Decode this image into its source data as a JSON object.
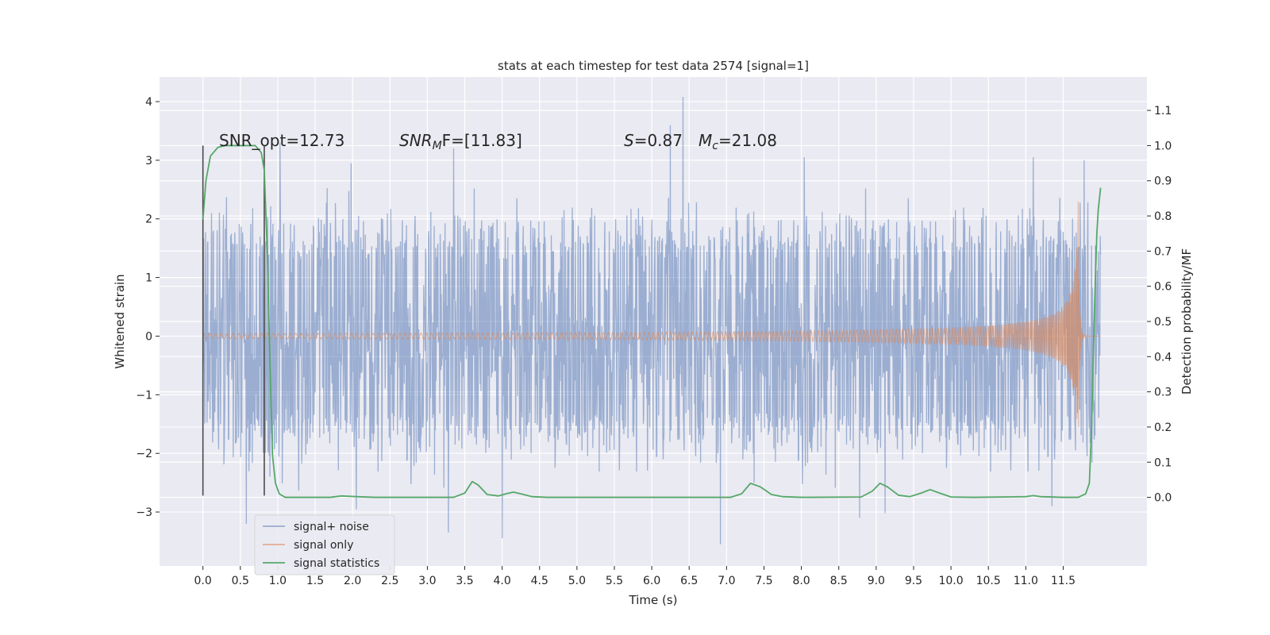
{
  "chart_data": {
    "type": "line",
    "title": "stats at each timestep for test data 2574 [signal=1]",
    "xlabel": "Time (s)",
    "ylabel_left": "Whitened strain",
    "ylabel_right": "Detection probability/MF",
    "xlim": [
      -0.58,
      12.62
    ],
    "ylim_left": [
      -3.92,
      4.42
    ],
    "ylim_right": [
      -0.195,
      1.195
    ],
    "xticks": [
      "0.0",
      "0.5",
      "1.0",
      "1.5",
      "2.0",
      "2.5",
      "3.0",
      "3.5",
      "4.0",
      "4.5",
      "5.0",
      "5.5",
      "6.0",
      "6.5",
      "7.0",
      "7.5",
      "8.0",
      "8.5",
      "9.0",
      "9.5",
      "10.0",
      "10.5",
      "11.0",
      "11.5"
    ],
    "yticks_left": [
      "−3",
      "−2",
      "−1",
      "0",
      "1",
      "2",
      "3",
      "4"
    ],
    "yticks_right": [
      "0.0",
      "0.1",
      "0.2",
      "0.3",
      "0.4",
      "0.5",
      "0.6",
      "0.7",
      "0.8",
      "0.9",
      "1.0",
      "1.1"
    ],
    "grid": true,
    "legend_position": "lower-left",
    "annotations": {
      "snr_opt": "SNR_opt=12.73",
      "snr_mf_base": "SNR",
      "snr_mf_sub": "M",
      "snr_mf_tail": "F=[11.83]",
      "s_base": "S",
      "s_tail": "=0.87",
      "mc_base": "M",
      "mc_sub": "c",
      "mc_tail": "=21.08"
    },
    "vertical_lines": [
      {
        "x": 0.0,
        "y_range": [
          -2.72,
          3.25
        ]
      },
      {
        "x": 0.82,
        "y_range": [
          -2.72,
          3.25
        ]
      }
    ],
    "series": [
      {
        "name": "signal+ noise",
        "axis": "left",
        "color": "#4c72b0",
        "opacity": 0.5,
        "x_range": [
          0.0,
          12.0
        ],
        "sample_count": 2400,
        "core_band": [
          -1.35,
          1.45
        ],
        "typical_extremes": [
          -2.9,
          3.3
        ],
        "peaks": [
          {
            "x": 6.42,
            "y": 4.08
          },
          {
            "x": 6.25,
            "y": 3.6
          },
          {
            "x": 1.03,
            "y": 3.3
          },
          {
            "x": 3.35,
            "y": 3.2
          },
          {
            "x": 8.04,
            "y": 3.05
          },
          {
            "x": 11.1,
            "y": 3.05
          },
          {
            "x": 11.78,
            "y": 3.0
          },
          {
            "x": 1.98,
            "y": 2.95
          },
          {
            "x": 6.92,
            "y": -3.55
          },
          {
            "x": 4.0,
            "y": -3.45
          },
          {
            "x": 3.28,
            "y": -3.35
          },
          {
            "x": 0.58,
            "y": -3.2
          },
          {
            "x": 9.12,
            "y": -3.02
          },
          {
            "x": 8.78,
            "y": -3.1
          },
          {
            "x": 11.35,
            "y": -2.9
          },
          {
            "x": 2.05,
            "y": -2.95
          }
        ]
      },
      {
        "name": "signal only",
        "axis": "left",
        "color": "#dd8452",
        "opacity": 0.6,
        "x_range": [
          0.0,
          12.0
        ],
        "chirp_merger_time": 11.7,
        "chirp_peak_amplitude": 2.3
      },
      {
        "name": "signal statistics",
        "axis": "right",
        "color": "#55a868",
        "points": [
          [
            0.0,
            0.79
          ],
          [
            0.04,
            0.9
          ],
          [
            0.1,
            0.97
          ],
          [
            0.2,
            0.995
          ],
          [
            0.3,
            1.0
          ],
          [
            0.5,
            1.0
          ],
          [
            0.7,
            1.0
          ],
          [
            0.78,
            0.98
          ],
          [
            0.82,
            0.93
          ],
          [
            0.86,
            0.7
          ],
          [
            0.9,
            0.35
          ],
          [
            0.93,
            0.12
          ],
          [
            0.97,
            0.04
          ],
          [
            1.02,
            0.01
          ],
          [
            1.1,
            0.0
          ],
          [
            1.7,
            0.0
          ],
          [
            1.85,
            0.004
          ],
          [
            2.05,
            0.002
          ],
          [
            2.3,
            0.0
          ],
          [
            3.35,
            0.0
          ],
          [
            3.5,
            0.012
          ],
          [
            3.6,
            0.045
          ],
          [
            3.68,
            0.035
          ],
          [
            3.8,
            0.008
          ],
          [
            3.95,
            0.004
          ],
          [
            4.05,
            0.01
          ],
          [
            4.15,
            0.015
          ],
          [
            4.25,
            0.01
          ],
          [
            4.4,
            0.002
          ],
          [
            4.6,
            0.0
          ],
          [
            7.05,
            0.0
          ],
          [
            7.2,
            0.01
          ],
          [
            7.32,
            0.04
          ],
          [
            7.45,
            0.03
          ],
          [
            7.6,
            0.008
          ],
          [
            7.75,
            0.002
          ],
          [
            8.0,
            0.0
          ],
          [
            8.8,
            0.001
          ],
          [
            8.95,
            0.018
          ],
          [
            9.05,
            0.04
          ],
          [
            9.15,
            0.03
          ],
          [
            9.3,
            0.006
          ],
          [
            9.45,
            0.002
          ],
          [
            9.6,
            0.012
          ],
          [
            9.72,
            0.022
          ],
          [
            9.85,
            0.012
          ],
          [
            10.0,
            0.001
          ],
          [
            10.3,
            0.0
          ],
          [
            11.0,
            0.002
          ],
          [
            11.1,
            0.005
          ],
          [
            11.2,
            0.002
          ],
          [
            11.5,
            0.0
          ],
          [
            11.7,
            0.0
          ],
          [
            11.8,
            0.01
          ],
          [
            11.85,
            0.04
          ],
          [
            11.88,
            0.2
          ],
          [
            11.92,
            0.55
          ],
          [
            11.95,
            0.75
          ],
          [
            11.97,
            0.82
          ],
          [
            12.0,
            0.88
          ]
        ]
      }
    ]
  }
}
